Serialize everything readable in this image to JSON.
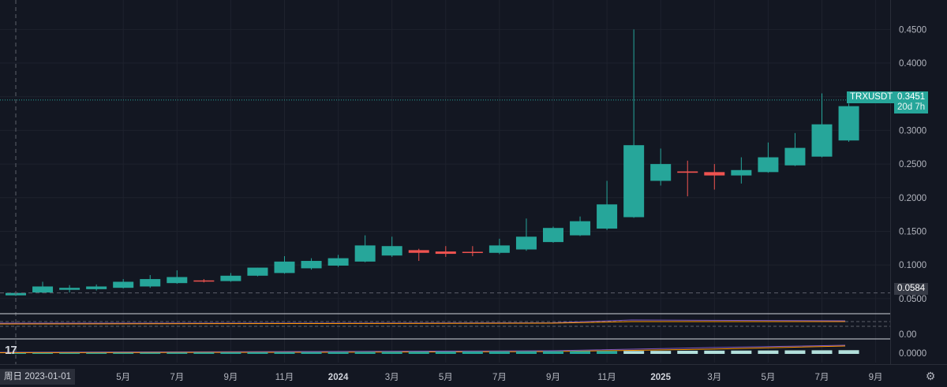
{
  "chart_data": {
    "type": "candlestick",
    "symbol": "TRXUSDT",
    "interval": "1M",
    "price_axis": {
      "ticks": [
        "0.4500",
        "0.4000",
        "0.3500",
        "0.3000",
        "0.2500",
        "0.2000",
        "0.1500",
        "0.1000",
        "0.0500"
      ],
      "ylim": [
        0.04,
        0.475
      ]
    },
    "time_axis": {
      "labels": [
        {
          "text": "5月",
          "bold": false,
          "index": 4
        },
        {
          "text": "7月",
          "bold": false,
          "index": 6
        },
        {
          "text": "9月",
          "bold": false,
          "index": 8
        },
        {
          "text": "11月",
          "bold": false,
          "index": 10
        },
        {
          "text": "2024",
          "bold": true,
          "index": 12
        },
        {
          "text": "3月",
          "bold": false,
          "index": 14
        },
        {
          "text": "5月",
          "bold": false,
          "index": 16
        },
        {
          "text": "7月",
          "bold": false,
          "index": 18
        },
        {
          "text": "9月",
          "bold": false,
          "index": 20
        },
        {
          "text": "11月",
          "bold": false,
          "index": 22
        },
        {
          "text": "2025",
          "bold": true,
          "index": 24
        },
        {
          "text": "3月",
          "bold": false,
          "index": 26
        },
        {
          "text": "5月",
          "bold": false,
          "index": 28
        },
        {
          "text": "7月",
          "bold": false,
          "index": 30
        },
        {
          "text": "9月",
          "bold": false,
          "index": 32
        }
      ]
    },
    "candles": [
      {
        "date": "2023-01",
        "o": 0.0548,
        "h": 0.0585,
        "l": 0.054,
        "c": 0.0584
      },
      {
        "date": "2023-02",
        "o": 0.059,
        "h": 0.075,
        "l": 0.058,
        "c": 0.068
      },
      {
        "date": "2023-03",
        "o": 0.063,
        "h": 0.07,
        "l": 0.059,
        "c": 0.066
      },
      {
        "date": "2023-04",
        "o": 0.064,
        "h": 0.071,
        "l": 0.062,
        "c": 0.068
      },
      {
        "date": "2023-05",
        "o": 0.066,
        "h": 0.079,
        "l": 0.065,
        "c": 0.075
      },
      {
        "date": "2023-06",
        "o": 0.068,
        "h": 0.085,
        "l": 0.066,
        "c": 0.079
      },
      {
        "date": "2023-07",
        "o": 0.073,
        "h": 0.092,
        "l": 0.072,
        "c": 0.082
      },
      {
        "date": "2023-08",
        "o": 0.077,
        "h": 0.079,
        "l": 0.074,
        "c": 0.0755
      },
      {
        "date": "2023-09",
        "o": 0.076,
        "h": 0.088,
        "l": 0.075,
        "c": 0.084
      },
      {
        "date": "2023-10",
        "o": 0.084,
        "h": 0.096,
        "l": 0.083,
        "c": 0.096
      },
      {
        "date": "2023-11",
        "o": 0.088,
        "h": 0.113,
        "l": 0.087,
        "c": 0.105
      },
      {
        "date": "2023-12",
        "o": 0.095,
        "h": 0.11,
        "l": 0.093,
        "c": 0.106
      },
      {
        "date": "2024-01",
        "o": 0.099,
        "h": 0.115,
        "l": 0.097,
        "c": 0.11
      },
      {
        "date": "2024-02",
        "o": 0.105,
        "h": 0.144,
        "l": 0.104,
        "c": 0.129
      },
      {
        "date": "2024-03",
        "o": 0.114,
        "h": 0.142,
        "l": 0.112,
        "c": 0.128
      },
      {
        "date": "2024-04",
        "o": 0.122,
        "h": 0.124,
        "l": 0.106,
        "c": 0.118
      },
      {
        "date": "2024-05",
        "o": 0.12,
        "h": 0.128,
        "l": 0.112,
        "c": 0.1165
      },
      {
        "date": "2024-06",
        "o": 0.1195,
        "h": 0.128,
        "l": 0.113,
        "c": 0.118
      },
      {
        "date": "2024-07",
        "o": 0.118,
        "h": 0.139,
        "l": 0.116,
        "c": 0.129
      },
      {
        "date": "2024-08",
        "o": 0.123,
        "h": 0.169,
        "l": 0.121,
        "c": 0.142
      },
      {
        "date": "2024-09",
        "o": 0.134,
        "h": 0.157,
        "l": 0.133,
        "c": 0.155
      },
      {
        "date": "2024-10",
        "o": 0.144,
        "h": 0.172,
        "l": 0.143,
        "c": 0.165
      },
      {
        "date": "2024-11",
        "o": 0.154,
        "h": 0.225,
        "l": 0.152,
        "c": 0.19
      },
      {
        "date": "2024-12",
        "o": 0.171,
        "h": 0.45,
        "l": 0.17,
        "c": 0.278
      },
      {
        "date": "2025-01",
        "o": 0.225,
        "h": 0.273,
        "l": 0.218,
        "c": 0.25
      },
      {
        "date": "2025-02",
        "o": 0.239,
        "h": 0.255,
        "l": 0.202,
        "c": 0.237
      },
      {
        "date": "2025-03",
        "o": 0.238,
        "h": 0.25,
        "l": 0.212,
        "c": 0.233
      },
      {
        "date": "2025-04",
        "o": 0.233,
        "h": 0.26,
        "l": 0.221,
        "c": 0.241
      },
      {
        "date": "2025-05",
        "o": 0.238,
        "h": 0.282,
        "l": 0.237,
        "c": 0.26
      },
      {
        "date": "2025-06",
        "o": 0.248,
        "h": 0.296,
        "l": 0.247,
        "c": 0.274
      },
      {
        "date": "2025-07",
        "o": 0.261,
        "h": 0.355,
        "l": 0.26,
        "c": 0.309
      },
      {
        "date": "2025-08",
        "o": 0.285,
        "h": 0.34,
        "l": 0.283,
        "c": 0.336
      }
    ],
    "current_price": "0.3451",
    "countdown": "20d 7h",
    "crosshair_price": "0.0584",
    "crosshair_date": "周日 2023-01-01",
    "indicator1": {
      "ticks": [
        "0.00"
      ]
    },
    "indicator2": {
      "ticks": [
        "0.0000"
      ]
    },
    "colors": {
      "up": "#26a69a",
      "down": "#ef5350",
      "background": "#131722",
      "grid": "#1e222d",
      "text": "#b2b5be"
    }
  },
  "ui": {
    "logo_text": "17",
    "settings_icon": "gear-icon"
  }
}
